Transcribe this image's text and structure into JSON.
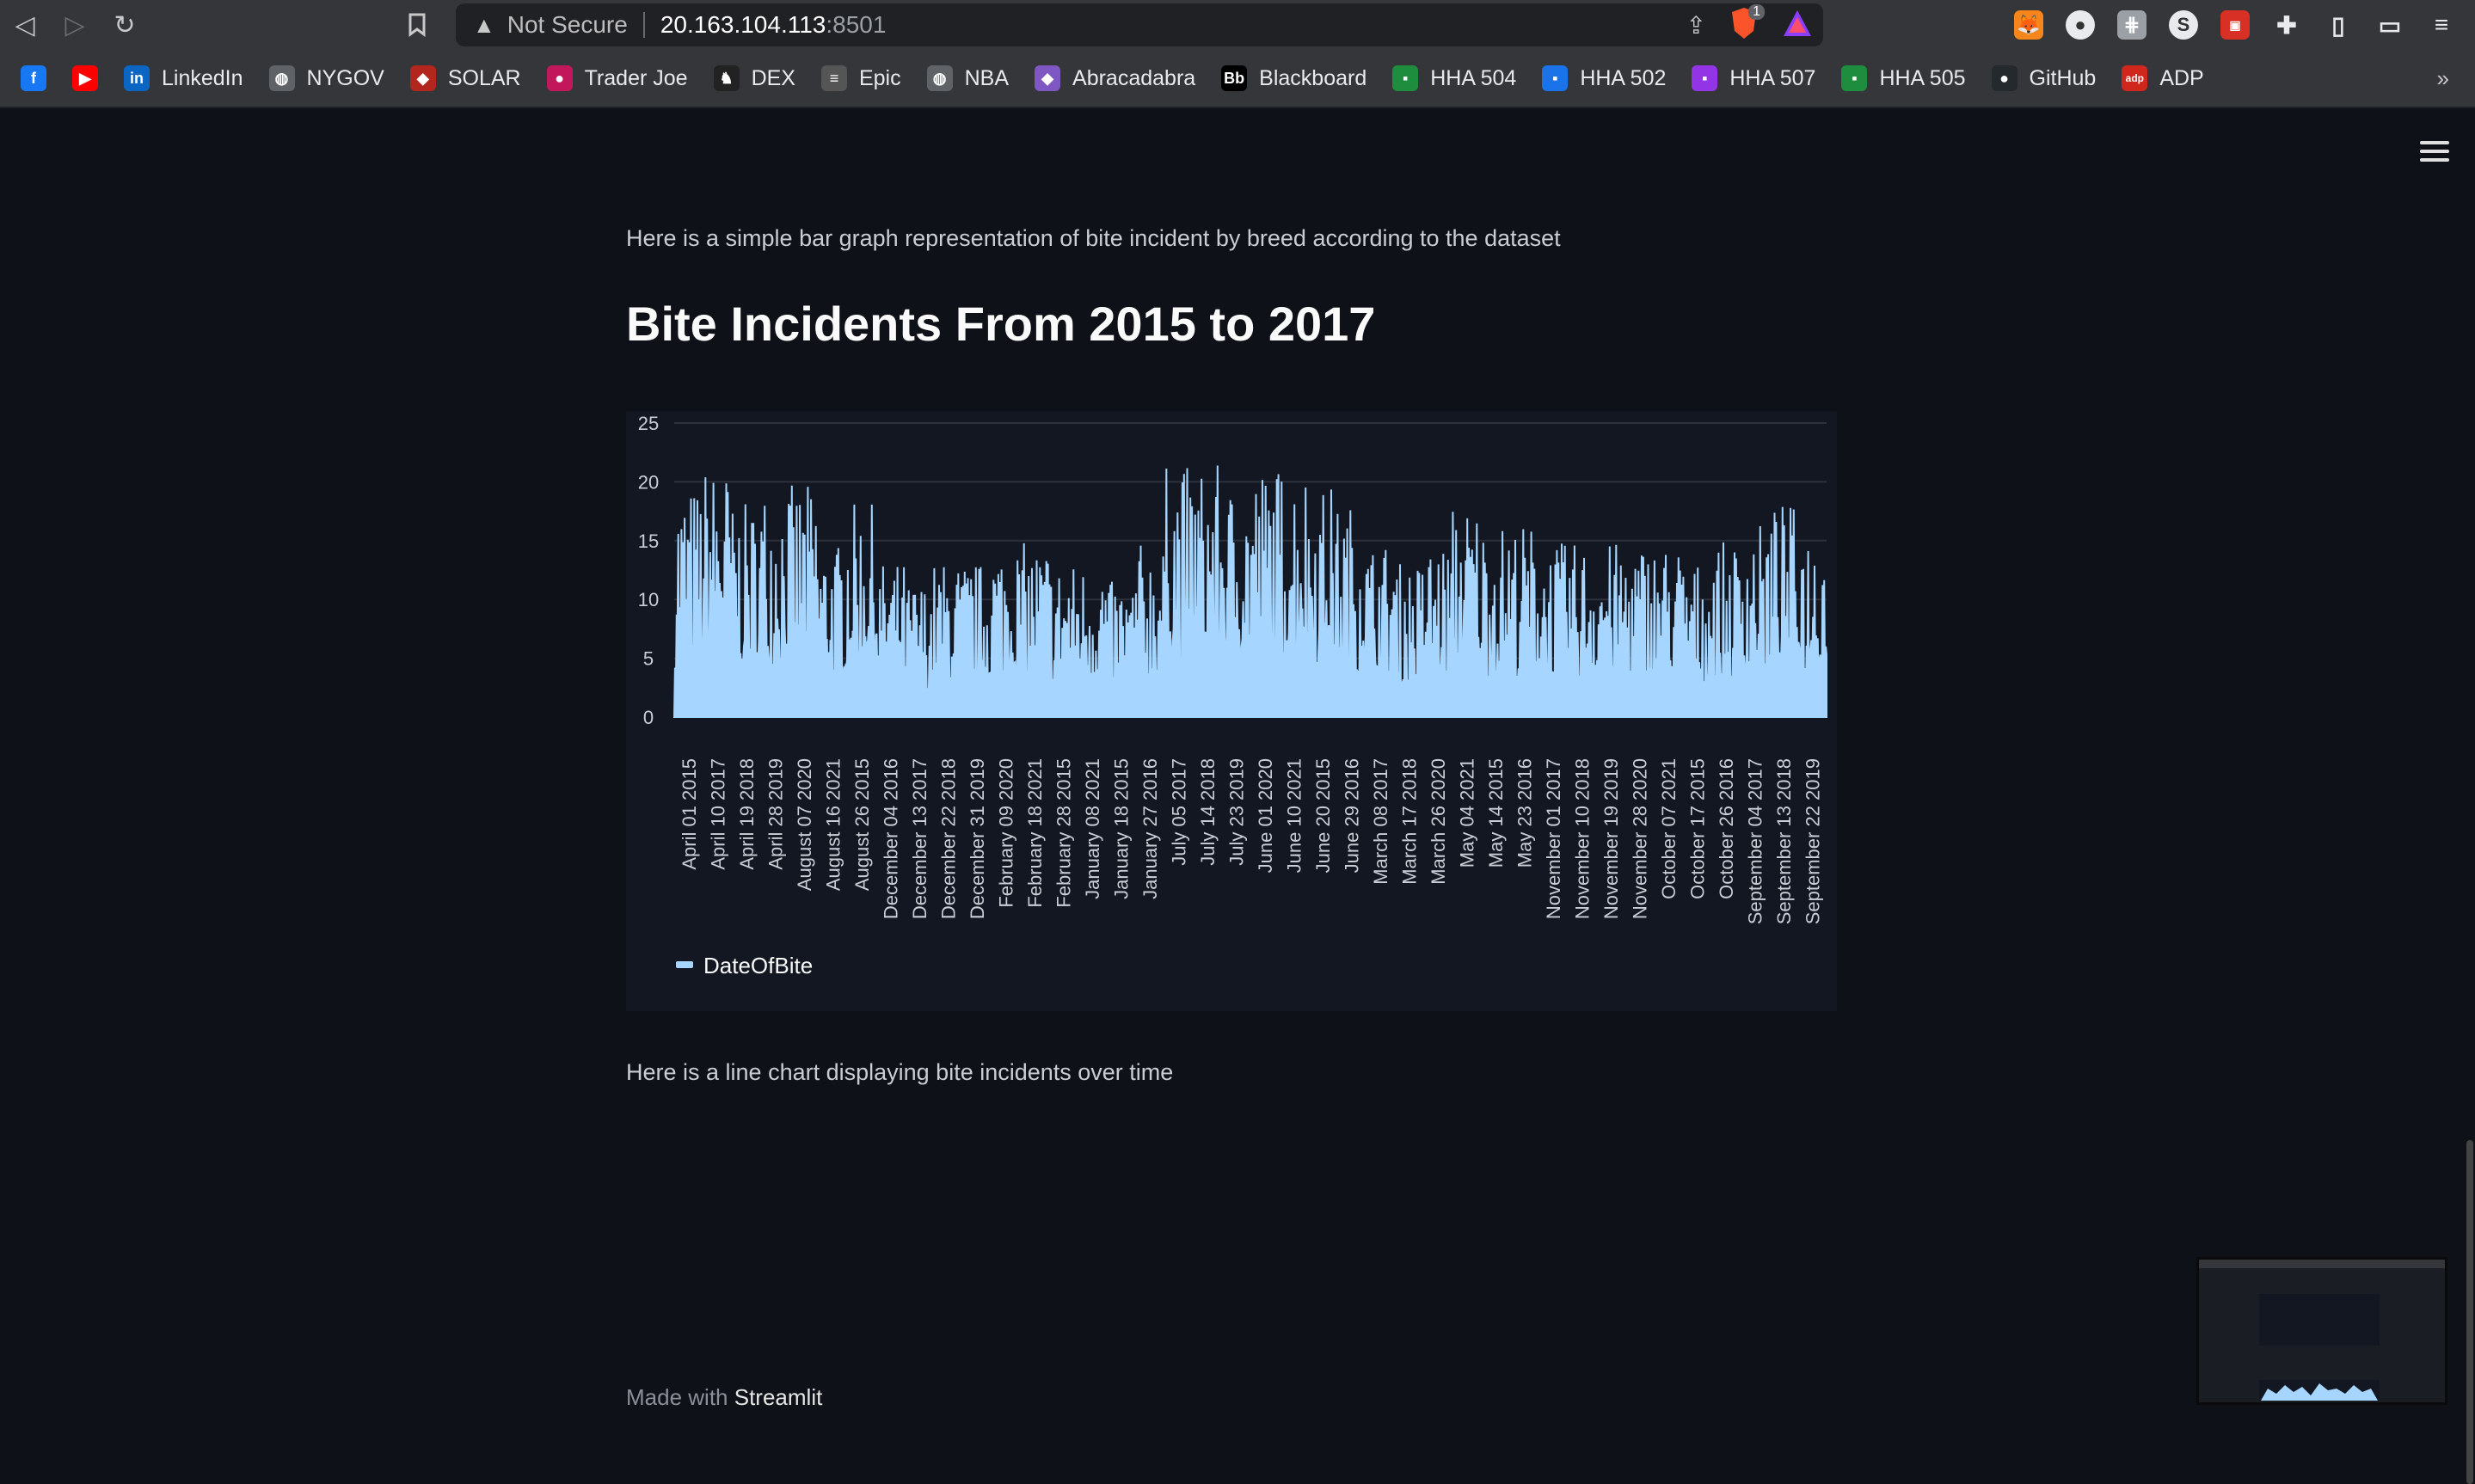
{
  "browser": {
    "url_warning": "Not Secure",
    "url_host": "20.163.104.113",
    "url_port": ":8501",
    "shield_badge": "1",
    "bookmarks": [
      {
        "label": "",
        "icon": "facebook-icon",
        "color": "#1877f2",
        "glyph": "f"
      },
      {
        "label": "",
        "icon": "youtube-icon",
        "color": "#ff0000",
        "glyph": "▶"
      },
      {
        "label": "LinkedIn",
        "icon": "linkedin-icon",
        "color": "#0a66c2",
        "glyph": "in"
      },
      {
        "label": "NYGOV",
        "icon": "globe-icon",
        "color": "#5f6368",
        "glyph": "◍"
      },
      {
        "label": "SOLAR",
        "icon": "shield-icon",
        "color": "#b3261e",
        "glyph": "◆"
      },
      {
        "label": "Trader Joe",
        "icon": "traderjoe-icon",
        "color": "#c2185b",
        "glyph": "●"
      },
      {
        "label": "DEX",
        "icon": "dex-icon",
        "color": "#222222",
        "glyph": "♞"
      },
      {
        "label": "Epic",
        "icon": "epic-icon",
        "color": "#555555",
        "glyph": "≡"
      },
      {
        "label": "NBA",
        "icon": "globe-icon",
        "color": "#5f6368",
        "glyph": "◍"
      },
      {
        "label": "Abracadabra",
        "icon": "abracadabra-icon",
        "color": "#7e57c2",
        "glyph": "◆"
      },
      {
        "label": "Blackboard",
        "icon": "blackboard-icon",
        "color": "#000000",
        "glyph": "Bb"
      },
      {
        "label": "HHA 504",
        "icon": "classroom-icon",
        "color": "#1e8e3e",
        "glyph": "▪"
      },
      {
        "label": "HHA 502",
        "icon": "classroom-icon",
        "color": "#1a73e8",
        "glyph": "▪"
      },
      {
        "label": "HHA 507",
        "icon": "classroom-icon",
        "color": "#9334e6",
        "glyph": "▪"
      },
      {
        "label": "HHA 505",
        "icon": "classroom-icon",
        "color": "#1e8e3e",
        "glyph": "▪"
      },
      {
        "label": "GitHub",
        "icon": "github-icon",
        "color": "#24292e",
        "glyph": "●"
      },
      {
        "label": "ADP",
        "icon": "adp-icon",
        "color": "#d0271d",
        "glyph": "adp"
      }
    ],
    "more_glyph": "»"
  },
  "page": {
    "intro_text": "Here is a simple bar graph representation of bite incident by breed according to the dataset",
    "heading": "Bite Incidents From 2015 to 2017",
    "line_intro_text": "Here is a line chart displaying bite incidents over time",
    "footer_prefix": "Made with ",
    "footer_brand": "Streamlit"
  },
  "colors": {
    "accent": "#a6d6ff",
    "background": "#0e1117"
  },
  "chart_data": {
    "type": "area",
    "title": "",
    "xlabel": "",
    "ylabel": "",
    "ylim": [
      0,
      25
    ],
    "yticks": [
      0,
      5,
      10,
      15,
      20,
      25
    ],
    "grid": true,
    "legend_position": "bottom-left",
    "categories": [
      "April 01 2015",
      "April 10 2017",
      "April 19 2018",
      "April 28 2019",
      "August 07 2020",
      "August 16 2021",
      "August 26 2015",
      "December 04 2016",
      "December 13 2017",
      "December 22 2018",
      "December 31 2019",
      "February 09 2020",
      "February 18 2021",
      "February 28 2015",
      "January 08 2021",
      "January 18 2015",
      "January 27 2016",
      "July 05 2017",
      "July 14 2018",
      "July 23 2019",
      "June 01 2020",
      "June 10 2021",
      "June 20 2015",
      "June 29 2016",
      "March 08 2017",
      "March 17 2018",
      "March 26 2020",
      "May 04 2021",
      "May 14 2015",
      "May 23 2016",
      "November 01 2017",
      "November 10 2018",
      "November 19 2019",
      "November 28 2020",
      "October 07 2021",
      "October 17 2015",
      "October 26 2016",
      "September 04 2017",
      "September 13 2018",
      "September 22 2019"
    ],
    "series": [
      {
        "name": "DateOfBite",
        "values": [
          12,
          13,
          11,
          12,
          12,
          9,
          11,
          8,
          7,
          8,
          8,
          9,
          9,
          8,
          8,
          7,
          9,
          13,
          13,
          12,
          13,
          13,
          12,
          11,
          9,
          8,
          9,
          11,
          10,
          10,
          9,
          9,
          9,
          9,
          9,
          8,
          9,
          10,
          11,
          10
        ]
      }
    ]
  }
}
